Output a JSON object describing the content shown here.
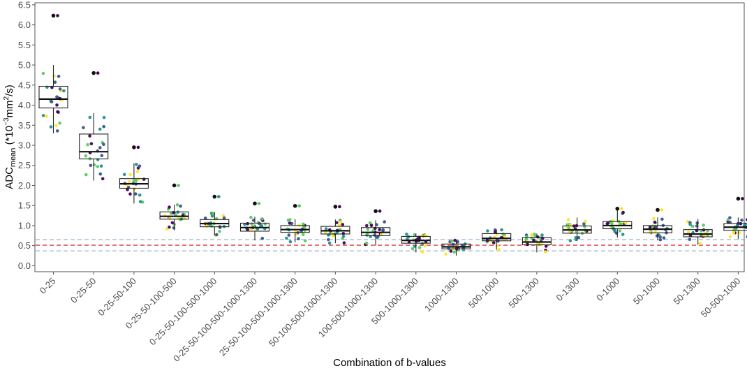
{
  "chart_data": {
    "type": "box",
    "xlabel": "Combination of b-values",
    "ylabel": {
      "base": "ADC",
      "subscript": "mean",
      "prefix": " (*10",
      "exp1": "−3",
      "mid": "mm",
      "exp2": "2",
      "suffix": "/s)"
    },
    "ylim": [
      0,
      6.5
    ],
    "yticks": [
      "0.0",
      "0.5",
      "1.0",
      "1.5",
      "2.0",
      "2.5",
      "3.0",
      "3.5",
      "4.0",
      "4.5",
      "5.0",
      "5.5",
      "6.0",
      "6.5"
    ],
    "reference_lines": [
      {
        "y": 0.65,
        "color": "#9ab5c9",
        "style": "dashed"
      },
      {
        "y": 0.51,
        "color": "#e0575b",
        "style": "dashed"
      },
      {
        "y": 0.37,
        "color": "#9ab5c9",
        "style": "dashed"
      }
    ],
    "point_colors": [
      "#440154",
      "#3b528b",
      "#21908c",
      "#5dc863",
      "#fde725"
    ],
    "categories": [
      "0-25",
      "0-25-50",
      "0-25-50-100",
      "0-25-50-100-500",
      "0-25-50-100-500-1000",
      "0-25-50-100-500-1000-1300",
      "25-50-100-500-1000-1300",
      "50-100-500-1000-1300",
      "100-500-1000-1300",
      "500-1000-1300",
      "1000-1300",
      "500-1000",
      "500-1300",
      "0-1300",
      "0-1000",
      "50-1000",
      "50-1300",
      "50-500-1000"
    ],
    "boxes": [
      {
        "q1": 3.93,
        "median": 4.15,
        "q3": 4.47,
        "whisker_low": 3.3,
        "whisker_high": 5.0,
        "outliers": [
          6.23
        ]
      },
      {
        "q1": 2.66,
        "median": 2.84,
        "q3": 3.28,
        "whisker_low": 2.12,
        "whisker_high": 3.8,
        "outliers": [
          4.8
        ]
      },
      {
        "q1": 1.93,
        "median": 2.04,
        "q3": 2.17,
        "whisker_low": 1.55,
        "whisker_high": 2.55,
        "outliers": [
          2.95
        ]
      },
      {
        "q1": 1.16,
        "median": 1.23,
        "q3": 1.34,
        "whisker_low": 0.88,
        "whisker_high": 1.52,
        "outliers": [
          2.0
        ]
      },
      {
        "q1": 0.97,
        "median": 1.05,
        "q3": 1.15,
        "whisker_low": 0.75,
        "whisker_high": 1.33,
        "outliers": [
          1.72
        ]
      },
      {
        "q1": 0.86,
        "median": 0.95,
        "q3": 1.06,
        "whisker_low": 0.63,
        "whisker_high": 1.22,
        "outliers": [
          1.55
        ]
      },
      {
        "q1": 0.83,
        "median": 0.9,
        "q3": 1.0,
        "whisker_low": 0.58,
        "whisker_high": 1.16,
        "outliers": [
          1.49
        ]
      },
      {
        "q1": 0.79,
        "median": 0.87,
        "q3": 0.98,
        "whisker_low": 0.56,
        "whisker_high": 1.15,
        "outliers": [
          1.47
        ]
      },
      {
        "q1": 0.75,
        "median": 0.83,
        "q3": 0.95,
        "whisker_low": 0.5,
        "whisker_high": 1.13,
        "outliers": [
          1.36
        ]
      },
      {
        "q1": 0.56,
        "median": 0.63,
        "q3": 0.73,
        "whisker_low": 0.33,
        "whisker_high": 0.8,
        "outliers": []
      },
      {
        "q1": 0.42,
        "median": 0.47,
        "q3": 0.54,
        "whisker_low": 0.25,
        "whisker_high": 0.64,
        "outliers": []
      },
      {
        "q1": 0.62,
        "median": 0.68,
        "q3": 0.8,
        "whisker_low": 0.4,
        "whisker_high": 0.9,
        "outliers": []
      },
      {
        "q1": 0.52,
        "median": 0.59,
        "q3": 0.7,
        "whisker_low": 0.33,
        "whisker_high": 0.8,
        "outliers": []
      },
      {
        "q1": 0.81,
        "median": 0.89,
        "q3": 0.99,
        "whisker_low": 0.62,
        "whisker_high": 1.2,
        "outliers": []
      },
      {
        "q1": 0.92,
        "median": 1.0,
        "q3": 1.1,
        "whisker_low": 0.7,
        "whisker_high": 1.38,
        "outliers": [
          1.42
        ]
      },
      {
        "q1": 0.82,
        "median": 0.91,
        "q3": 1.0,
        "whisker_low": 0.63,
        "whisker_high": 1.2,
        "outliers": [
          1.39
        ]
      },
      {
        "q1": 0.72,
        "median": 0.79,
        "q3": 0.9,
        "whisker_low": 0.52,
        "whisker_high": 1.16,
        "outliers": []
      },
      {
        "q1": 0.88,
        "median": 0.96,
        "q3": 1.05,
        "whisker_low": 0.66,
        "whisker_high": 1.2,
        "outliers": [
          1.67
        ]
      }
    ]
  }
}
